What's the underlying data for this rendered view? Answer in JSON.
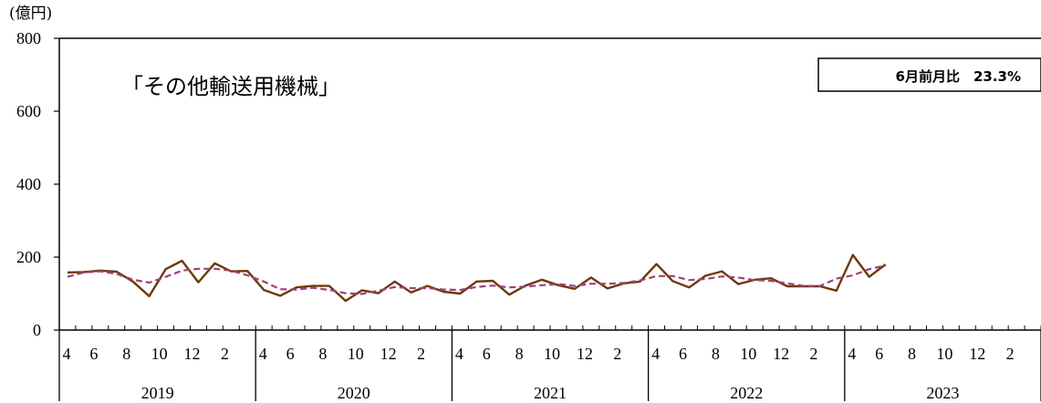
{
  "chart_data": {
    "type": "line",
    "ylabel": "(億円)",
    "ylim": [
      0,
      800
    ],
    "yticks": [
      0,
      200,
      400,
      600,
      800
    ],
    "annotation": "「その他輸送用機械」",
    "callout": "6月前月比　23.3%",
    "years": [
      "2019",
      "2020",
      "2021",
      "2022",
      "2023"
    ],
    "month_tick_labels": [
      "4",
      "6",
      "8",
      "10",
      "12",
      "2"
    ],
    "series": [
      {
        "style": "solid",
        "color": "#6b3a0a",
        "values": [
          158,
          159,
          163,
          160,
          133,
          93,
          167,
          190,
          131,
          183,
          161,
          162,
          110,
          94,
          117,
          121,
          121,
          80,
          109,
          101,
          133,
          103,
          121,
          105,
          100,
          133,
          135,
          97,
          122,
          138,
          123,
          113,
          144,
          114,
          128,
          133,
          181,
          134,
          117,
          149,
          161,
          126,
          138,
          142,
          120,
          120,
          120,
          108,
          206,
          146,
          180
        ]
      },
      {
        "style": "dashed",
        "color": "#a0407a",
        "values": [
          146,
          158,
          161,
          154,
          138,
          130,
          146,
          163,
          168,
          168,
          163,
          150,
          133,
          112,
          111,
          116,
          110,
          101,
          99,
          108,
          118,
          115,
          115,
          111,
          110,
          118,
          122,
          117,
          119,
          123,
          126,
          121,
          127,
          127,
          129,
          136,
          148,
          148,
          137,
          140,
          147,
          144,
          137,
          135,
          128,
          121,
          121,
          141,
          150,
          167,
          177
        ]
      }
    ]
  }
}
